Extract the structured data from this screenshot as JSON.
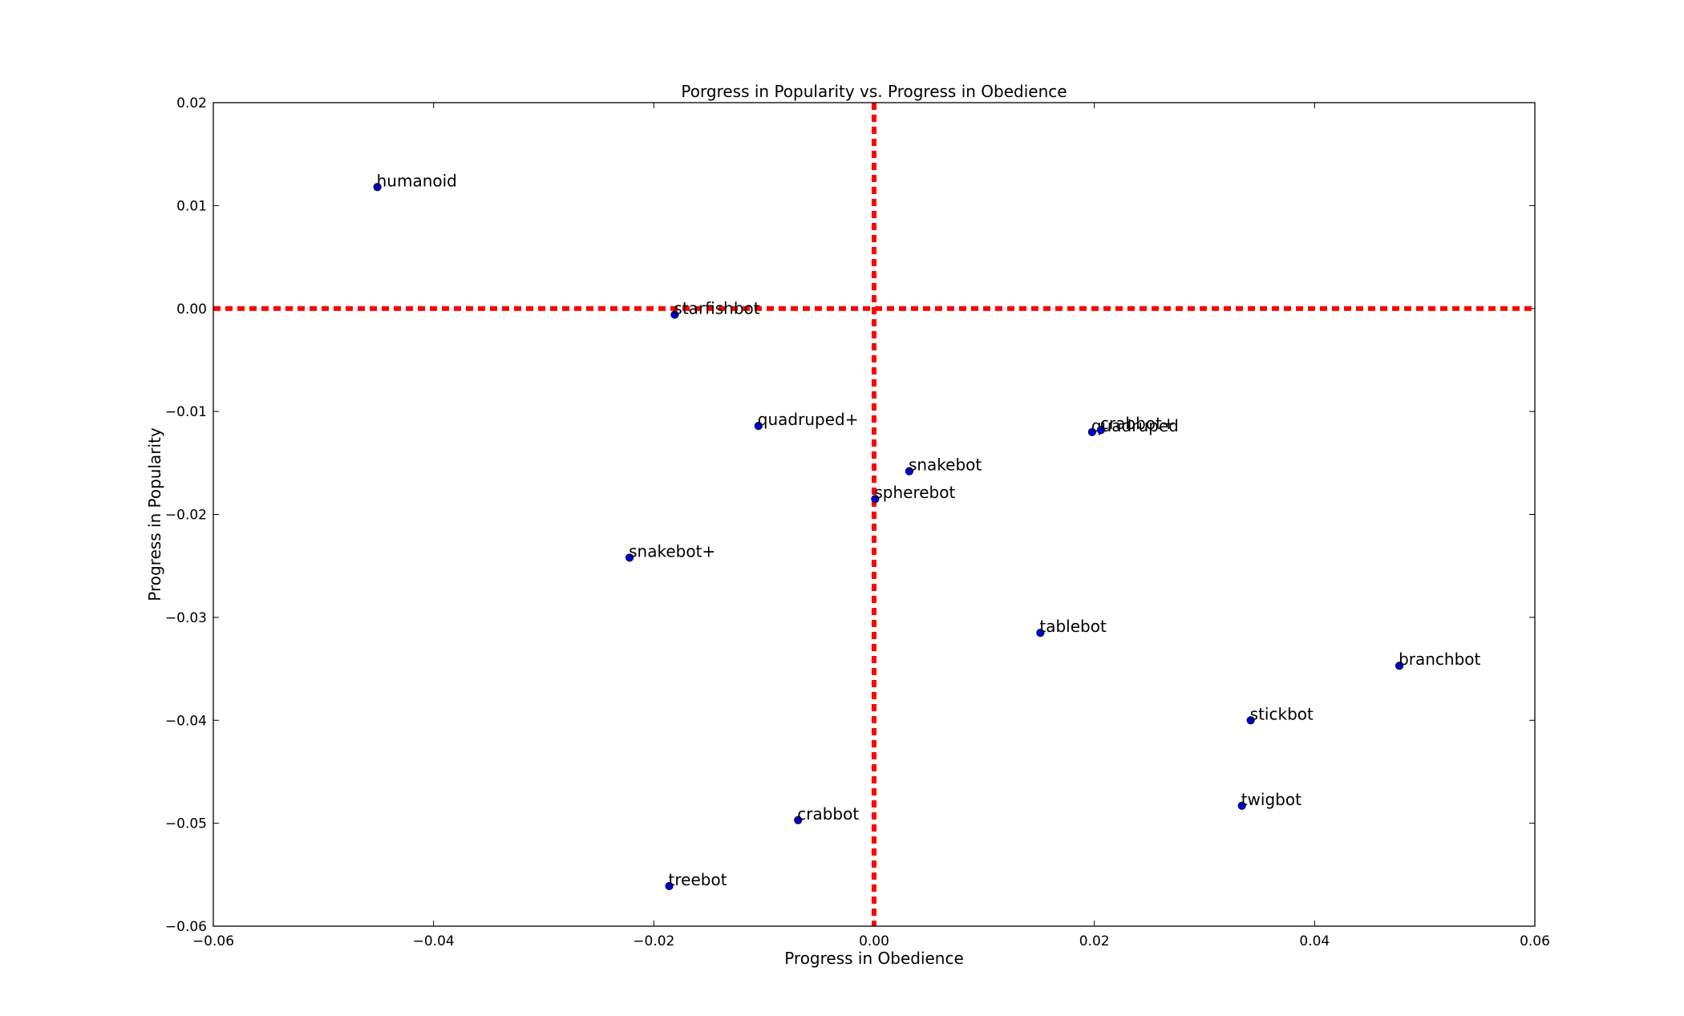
{
  "chart_data": {
    "type": "scatter",
    "title": "Porgress in Popularity vs. Progress in Obedience",
    "xlabel": "Progress in Obedience",
    "ylabel": "Progress in Popularity",
    "xlim": [
      -0.06,
      0.06
    ],
    "ylim": [
      -0.06,
      0.02
    ],
    "xticks": [
      -0.06,
      -0.04,
      -0.02,
      0.0,
      0.02,
      0.04,
      0.06
    ],
    "xtick_labels": [
      "−0.06",
      "−0.04",
      "−0.02",
      "0.00",
      "0.02",
      "0.04",
      "0.06"
    ],
    "yticks": [
      0.02,
      0.01,
      0.0,
      -0.01,
      -0.02,
      -0.03,
      -0.04,
      -0.05,
      -0.06
    ],
    "ytick_labels": [
      "0.02",
      "0.01",
      "0.00",
      "−0.01",
      "−0.02",
      "−0.03",
      "−0.04",
      "−0.05",
      "−0.06"
    ],
    "grid": false,
    "point_color": "#0000cc",
    "reference_line_color": "#ff0000",
    "reference_lines": {
      "x": 0.0,
      "y": 0.0
    },
    "points": [
      {
        "label": "humanoid",
        "x": -0.0451,
        "y": 0.0118
      },
      {
        "label": "starfishbot",
        "x": -0.0181,
        "y": -0.0006
      },
      {
        "label": "quadruped+",
        "x": -0.0105,
        "y": -0.0114
      },
      {
        "label": "snakebot+",
        "x": -0.0222,
        "y": -0.0242
      },
      {
        "label": "crabbot",
        "x": -0.0069,
        "y": -0.0497
      },
      {
        "label": "treebot",
        "x": -0.0186,
        "y": -0.0561
      },
      {
        "label": "spherebot",
        "x": 0.0001,
        "y": -0.0185
      },
      {
        "label": "snakebot",
        "x": 0.0032,
        "y": -0.0158
      },
      {
        "label": "quadruped",
        "x": 0.0198,
        "y": -0.012
      },
      {
        "label": "crabbot+",
        "x": 0.0206,
        "y": -0.0118
      },
      {
        "label": "tablebot",
        "x": 0.0151,
        "y": -0.0315
      },
      {
        "label": "branchbot",
        "x": 0.0477,
        "y": -0.0347
      },
      {
        "label": "stickbot",
        "x": 0.0342,
        "y": -0.04
      },
      {
        "label": "twigbot",
        "x": 0.0334,
        "y": -0.0483
      }
    ]
  }
}
